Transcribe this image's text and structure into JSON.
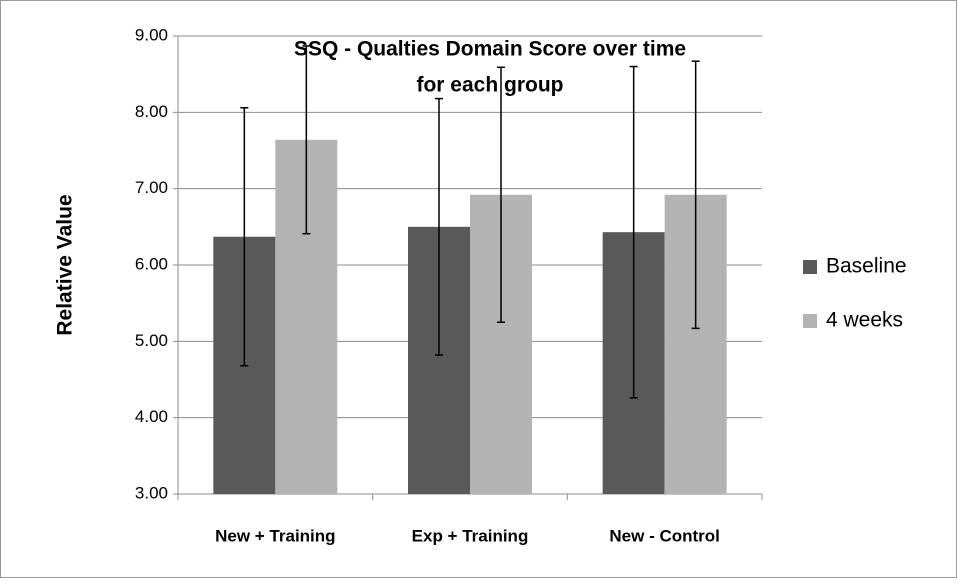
{
  "chart_data": {
    "type": "bar",
    "title": [
      "SSQ - Qualties Domain Score over time",
      "for each group"
    ],
    "y_label": "Relative Value",
    "categories": [
      "New + Training",
      "Exp + Training",
      "New - Control"
    ],
    "series": [
      {
        "name": "Baseline",
        "color": "#595959",
        "values": [
          6.37,
          6.5,
          6.43
        ],
        "errors": [
          1.69,
          1.68,
          2.17
        ]
      },
      {
        "name": "4 weeks",
        "color": "#b3b3b3",
        "values": [
          7.64,
          6.92,
          6.92
        ],
        "errors": [
          1.23,
          1.67,
          1.75
        ]
      }
    ],
    "ylim": [
      3,
      9
    ],
    "yticks": [
      {
        "value": 3,
        "label": "3.00"
      },
      {
        "value": 4,
        "label": "4.00"
      },
      {
        "value": 5,
        "label": "5.00"
      },
      {
        "value": 6,
        "label": "6.00"
      },
      {
        "value": 7,
        "label": "7.00"
      },
      {
        "value": 8,
        "label": "8.00"
      },
      {
        "value": 9,
        "label": "9.00"
      }
    ],
    "grid": true,
    "legend": "right"
  }
}
